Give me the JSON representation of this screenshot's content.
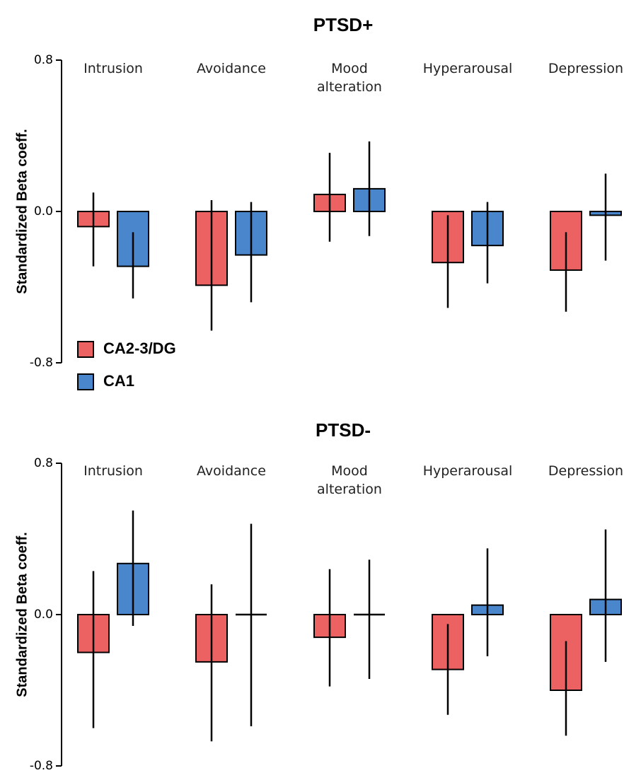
{
  "colors": {
    "ca23dg": "#ec6262",
    "ca1": "#4a86cc",
    "axis": "#000000"
  },
  "legend": [
    {
      "series": "CA2-3/DG",
      "color": "#ec6262"
    },
    {
      "series": "CA1",
      "color": "#4a86cc"
    }
  ],
  "chart_data": [
    {
      "type": "bar",
      "title": "PTSD+",
      "ylabel": "Standardized Beta coeff.",
      "ylim": [
        -0.8,
        0.8
      ],
      "yticks": [
        "0.8",
        "0.0",
        "-0.8"
      ],
      "categories": [
        [
          "Intrusion"
        ],
        [
          "Avoidance"
        ],
        [
          "Mood",
          "alteration"
        ],
        [
          "Hyperarousal"
        ],
        [
          "Depression"
        ]
      ],
      "series": [
        {
          "name": "CA2-3/DG",
          "values": [
            -0.08,
            -0.39,
            0.09,
            -0.27,
            -0.31
          ],
          "err_low": [
            -0.29,
            -0.63,
            -0.16,
            -0.51,
            -0.53
          ],
          "err_high": [
            0.1,
            0.06,
            0.31,
            -0.02,
            -0.11
          ]
        },
        {
          "name": "CA1",
          "values": [
            -0.29,
            -0.23,
            0.12,
            -0.18,
            -0.02
          ],
          "err_low": [
            -0.46,
            -0.48,
            -0.13,
            -0.38,
            -0.26
          ],
          "err_high": [
            -0.11,
            0.05,
            0.37,
            0.05,
            0.2
          ]
        }
      ],
      "legend_position": "bottom-left"
    },
    {
      "type": "bar",
      "title": "PTSD-",
      "ylabel": "Standardized Beta coeff.",
      "ylim": [
        -0.8,
        0.8
      ],
      "yticks": [
        "0.8",
        "0.0",
        "-0.8"
      ],
      "categories": [
        [
          "Intrusion"
        ],
        [
          "Avoidance"
        ],
        [
          "Mood",
          "alteration"
        ],
        [
          "Hyperarousal"
        ],
        [
          "Depression"
        ]
      ],
      "series": [
        {
          "name": "CA2-3/DG",
          "values": [
            -0.2,
            -0.25,
            -0.12,
            -0.29,
            -0.4
          ],
          "err_low": [
            -0.6,
            -0.67,
            -0.38,
            -0.53,
            -0.64
          ],
          "err_high": [
            0.23,
            0.16,
            0.24,
            -0.05,
            -0.14
          ]
        },
        {
          "name": "CA1",
          "values": [
            0.27,
            0.0,
            0.0,
            0.05,
            0.08
          ],
          "err_low": [
            -0.06,
            -0.59,
            -0.34,
            -0.22,
            -0.25
          ],
          "err_high": [
            0.55,
            0.48,
            0.29,
            0.35,
            0.45
          ]
        }
      ]
    }
  ]
}
